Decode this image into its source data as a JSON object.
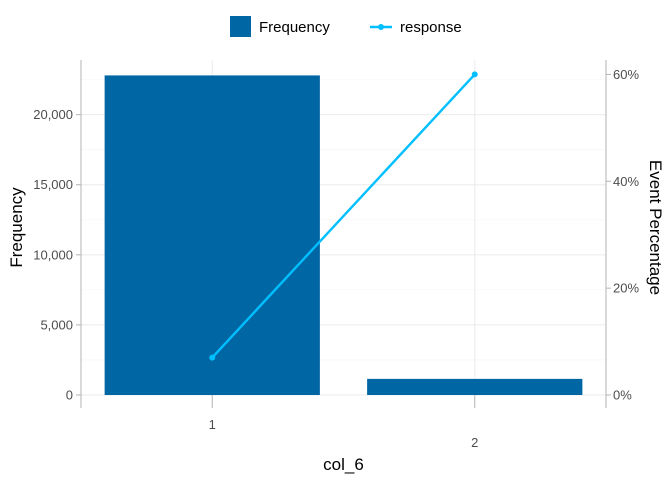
{
  "chart_data": {
    "type": "bar",
    "categories": [
      "1",
      "2"
    ],
    "category_label_offset": [
      "high",
      "low"
    ],
    "series": [
      {
        "name": "Frequency",
        "kind": "bar",
        "axis": "left",
        "values": [
          22800,
          1150
        ],
        "color": "#0066a4"
      },
      {
        "name": "response",
        "kind": "line",
        "axis": "right",
        "values": [
          0.07,
          0.6
        ],
        "color": "#00bfff"
      }
    ],
    "xlabel": "col_6",
    "ylabel_left": "Frequency",
    "ylabel_right": "Event Percentage",
    "ylim_left": [
      0,
      23900
    ],
    "yticks_left": [
      0,
      5000,
      10000,
      15000,
      20000
    ],
    "ytick_labels_left": [
      "0",
      "5,000",
      "10,000",
      "15,000",
      "20,000"
    ],
    "ylim_right": [
      0,
      0.627
    ],
    "yticks_right": [
      0,
      0.2,
      0.4,
      0.6
    ],
    "ytick_labels_right": [
      "0%",
      "20%",
      "40%",
      "60%"
    ],
    "grid": true,
    "legend_position": "top"
  }
}
